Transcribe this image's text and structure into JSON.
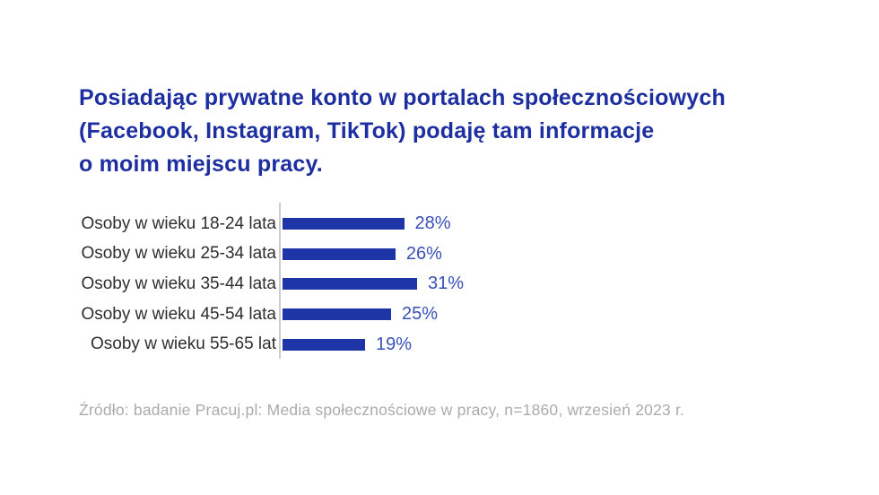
{
  "page": {
    "background": "#ffffff"
  },
  "title": {
    "lines": [
      "Posiadając prywatne konto w portalach społecznościowych",
      "(Facebook, Instagram, TikTok) podaję tam informacje",
      "o moim miejscu pracy."
    ],
    "color": "#1d2fa0"
  },
  "chart_data": {
    "type": "bar",
    "orientation": "horizontal",
    "title": "Posiadając prywatne konto w portalach społecznościowych (Facebook, Instagram, TikTok) podaję tam informacje o moim miejscu pracy.",
    "categories": [
      "Osoby w wieku 18-24 lata",
      "Osoby w wieku 25-34 lata",
      "Osoby w wieku 35-44 lata",
      "Osoby w wieku 45-54 lata",
      "Osoby w wieku 55-65 lat"
    ],
    "values": [
      28,
      26,
      31,
      25,
      19
    ],
    "value_labels": [
      "28%",
      "26%",
      "31%",
      "25%",
      "19%"
    ],
    "xlabel": "",
    "ylabel": "",
    "xlim": [
      0,
      35
    ],
    "grid": false,
    "legend": false,
    "bar_color": "#1e35a8",
    "value_color": "#3a50b8",
    "label_color": "#2e2e2e",
    "axis_line_color": "#cccccc"
  },
  "source": {
    "text": "Źródło: badanie Pracuj.pl: Media społecznościowe w pracy, n=1860, wrzesień 2023 r.",
    "color": "#ababab"
  }
}
